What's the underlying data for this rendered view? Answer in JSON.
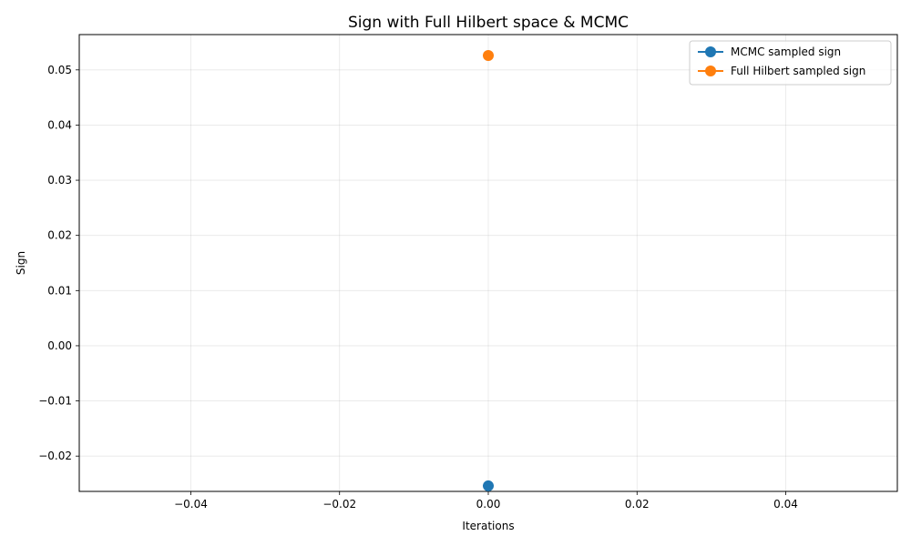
{
  "chart_data": {
    "type": "scatter",
    "title": "Sign with Full Hilbert space & MCMC",
    "xlabel": "Iterations",
    "ylabel": "Sign",
    "xlim": [
      -0.055,
      0.055
    ],
    "ylim": [
      -0.0264,
      0.0564
    ],
    "xticks": [
      -0.04,
      -0.02,
      0.0,
      0.02,
      0.04
    ],
    "xtick_labels": [
      "−0.04",
      "−0.02",
      "0.00",
      "0.02",
      "0.04"
    ],
    "yticks": [
      -0.02,
      -0.01,
      0.0,
      0.01,
      0.02,
      0.03,
      0.04,
      0.05
    ],
    "ytick_labels": [
      "−0.02",
      "−0.01",
      "0.00",
      "0.01",
      "0.02",
      "0.03",
      "0.04",
      "0.05"
    ],
    "grid": true,
    "legend_position": "top-right",
    "series": [
      {
        "name": "MCMC sampled sign",
        "color": "#1f77b4",
        "x": [
          0
        ],
        "y": [
          -0.0254
        ]
      },
      {
        "name": "Full Hilbert sampled sign",
        "color": "#ff7f0e",
        "x": [
          0
        ],
        "y": [
          0.0526
        ]
      }
    ]
  }
}
